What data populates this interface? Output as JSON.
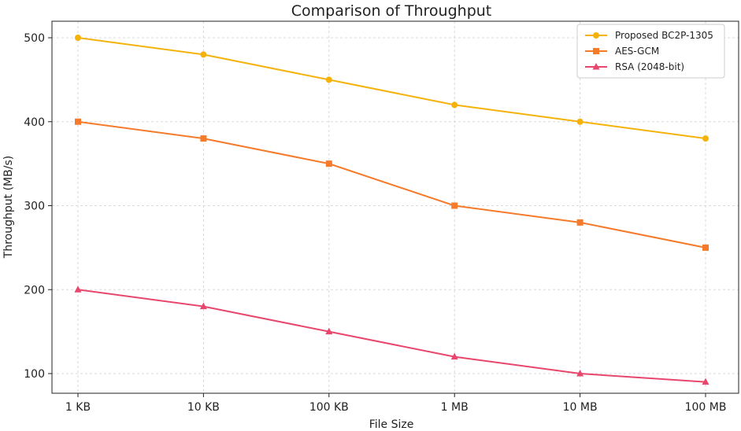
{
  "chart_data": {
    "type": "line",
    "title": "Comparison of Throughput",
    "xlabel": "File Size",
    "ylabel": "Throughput (MB/s)",
    "categories": [
      "1 KB",
      "10 KB",
      "100 KB",
      "1 MB",
      "10 MB",
      "100 MB"
    ],
    "yticks": [
      100,
      200,
      300,
      400,
      500
    ],
    "ylim": [
      80,
      510
    ],
    "grid": true,
    "legend_position": "top-right",
    "series": [
      {
        "name": "Proposed BC2P-1305",
        "color": "#f5b20a",
        "marker": "circle",
        "values": [
          500,
          480,
          450,
          420,
          400,
          380
        ]
      },
      {
        "name": "AES-GCM",
        "color": "#f57a2a",
        "marker": "square",
        "values": [
          400,
          380,
          350,
          300,
          280,
          250
        ]
      },
      {
        "name": "RSA (2048-bit)",
        "color": "#e8466c",
        "marker": "triangle",
        "values": [
          200,
          180,
          150,
          120,
          100,
          90
        ]
      }
    ]
  }
}
